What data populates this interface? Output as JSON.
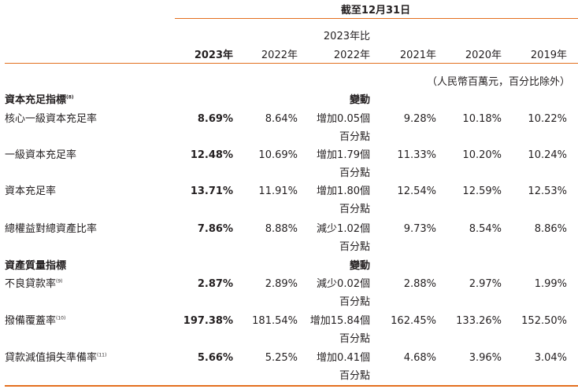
{
  "header": {
    "period_title": "截至12月31日",
    "columns": [
      {
        "label": "2023年",
        "bold": true
      },
      {
        "label": "2022年",
        "bold": false
      },
      {
        "label_line1": "2023年比",
        "label": "2022年",
        "bold": false
      },
      {
        "label": "2021年",
        "bold": false
      },
      {
        "label": "2020年",
        "bold": false
      },
      {
        "label": "2019年",
        "bold": false
      }
    ],
    "unit_note": "（人民幣百萬元，百分比除外）"
  },
  "sections": [
    {
      "title": "資本充足指標",
      "title_note": "(8)",
      "change_header": "變動",
      "rows": [
        {
          "label": "核心一級資本充足率",
          "note": "",
          "v2023": "8.69%",
          "v2022": "8.64%",
          "change_line1": "增加0.05個",
          "change_line2": "百分點",
          "v2021": "9.28%",
          "v2020": "10.18%",
          "v2019": "10.22%"
        },
        {
          "label": "一級資本充足率",
          "note": "",
          "v2023": "12.48%",
          "v2022": "10.69%",
          "change_line1": "增加1.79個",
          "change_line2": "百分點",
          "v2021": "11.33%",
          "v2020": "10.20%",
          "v2019": "10.24%"
        },
        {
          "label": "資本充足率",
          "note": "",
          "v2023": "13.71%",
          "v2022": "11.91%",
          "change_line1": "增加1.80個",
          "change_line2": "百分點",
          "v2021": "12.54%",
          "v2020": "12.59%",
          "v2019": "12.53%"
        },
        {
          "label": "總權益對總資產比率",
          "note": "",
          "v2023": "7.86%",
          "v2022": "8.88%",
          "change_line1": "減少1.02個",
          "change_line2": "百分點",
          "v2021": "9.73%",
          "v2020": "8.54%",
          "v2019": "8.86%"
        }
      ]
    },
    {
      "title": "資產質量指標",
      "title_note": "",
      "change_header": "變動",
      "rows": [
        {
          "label": "不良貸款率",
          "note": "(9)",
          "v2023": "2.87%",
          "v2022": "2.89%",
          "change_line1": "減少0.02個",
          "change_line2": "百分點",
          "v2021": "2.88%",
          "v2020": "2.97%",
          "v2019": "1.99%"
        },
        {
          "label": "撥備覆蓋率",
          "note": "(10)",
          "v2023": "197.38%",
          "v2022": "181.54%",
          "change_line1": "增加15.84個",
          "change_line2": "百分點",
          "v2021": "162.45%",
          "v2020": "133.26%",
          "v2019": "152.50%"
        },
        {
          "label": "貸款減值損失準備率",
          "note": "(11)",
          "v2023": "5.66%",
          "v2022": "5.25%",
          "change_line1": "增加0.41個",
          "change_line2": "百分點",
          "v2021": "4.68%",
          "v2020": "3.96%",
          "v2019": "3.04%"
        }
      ]
    }
  ],
  "colors": {
    "accent": "#e36f1e",
    "text": "#231f20"
  }
}
